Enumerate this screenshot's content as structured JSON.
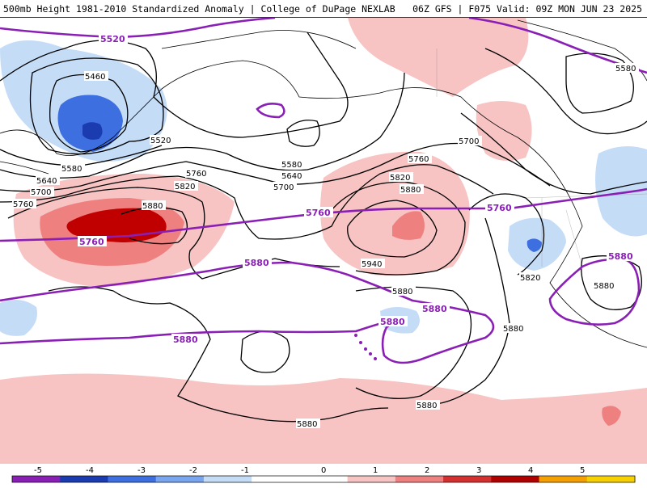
{
  "header": {
    "left_title": "500mb Height 1981-2010 Standardized Anomaly | College of DuPage NEXLAB",
    "right_title": "06Z GFS | F075 Valid: 09Z MON JUN 23 2025"
  },
  "map": {
    "black_contour_labels": [
      "5460",
      "5520",
      "5580",
      "5640",
      "5700",
      "5760",
      "5820",
      "5880",
      "5940",
      "5580",
      "5640",
      "5700",
      "5760",
      "5820",
      "5880",
      "5580",
      "5700",
      "5760",
      "5820",
      "5880",
      "5880",
      "5880",
      "5880",
      "5880"
    ],
    "purple_contour_labels": [
      "5520",
      "5760",
      "5760",
      "5760",
      "5880",
      "5880",
      "5880",
      "5880",
      "5880"
    ],
    "colors": {
      "contour_black": "#000000",
      "contour_purple": "#8a1fb5",
      "coastline": "#000000"
    }
  },
  "legend": {
    "ticks": [
      "-5",
      "-4",
      "-3",
      "-2",
      "-1",
      "0",
      "1",
      "2",
      "3",
      "4",
      "5"
    ],
    "colors": [
      "#8a1fb5",
      "#1a3cb0",
      "#3d6fe0",
      "#7aa5ef",
      "#c5dcf7",
      "#ffffff",
      "#ffffff",
      "#f7c3c3",
      "#ef8080",
      "#d43030",
      "#b00000",
      "#f5a000",
      "#f7d000"
    ]
  }
}
